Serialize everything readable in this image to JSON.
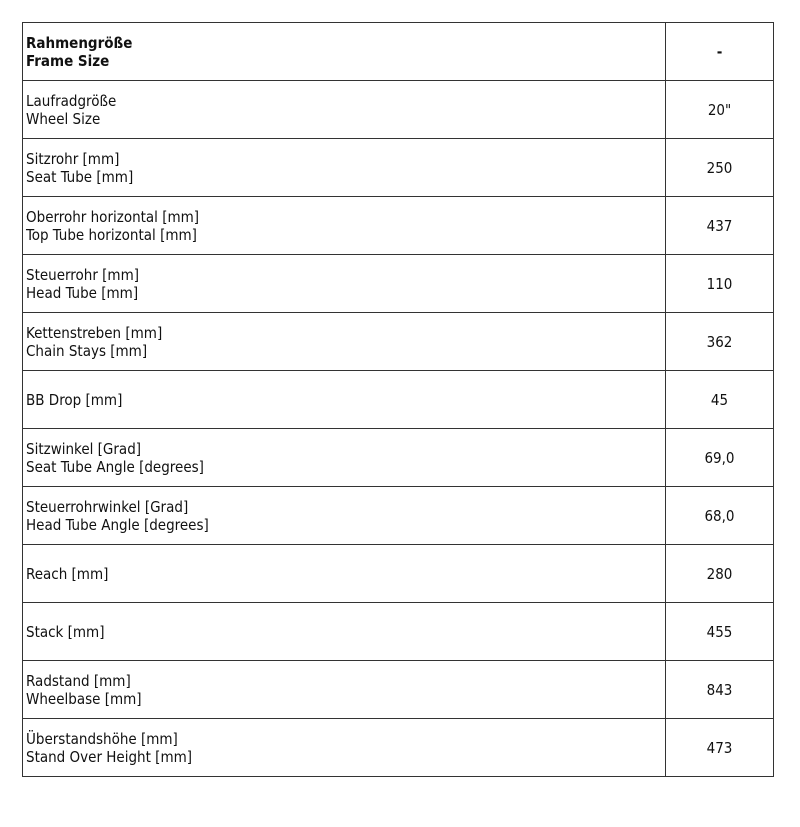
{
  "header": {
    "label_de": "Rahmengröße",
    "label_en": "Frame Size",
    "value": "-"
  },
  "rows": [
    {
      "label_de": "Laufradgröße",
      "label_en": "Wheel Size",
      "value": "20\""
    },
    {
      "label_de": "Sitzrohr [mm]",
      "label_en": "Seat Tube [mm]",
      "value": "250"
    },
    {
      "label_de": "Oberrohr horizontal [mm]",
      "label_en": "Top Tube horizontal [mm]",
      "value": "437"
    },
    {
      "label_de": "Steuerrohr [mm]",
      "label_en": "Head Tube [mm]",
      "value": "110"
    },
    {
      "label_de": "Kettenstreben [mm]",
      "label_en": "Chain Stays [mm]",
      "value": "362"
    },
    {
      "label_de": "BB Drop [mm]",
      "label_en": "",
      "value": "45"
    },
    {
      "label_de": "Sitzwinkel [Grad]",
      "label_en": "Seat Tube Angle [degrees]",
      "value": "69,0"
    },
    {
      "label_de": "Steuerrohrwinkel [Grad]",
      "label_en": "Head Tube Angle [degrees]",
      "value": "68,0"
    },
    {
      "label_de": "Reach [mm]",
      "label_en": "",
      "value": "280"
    },
    {
      "label_de": "Stack [mm]",
      "label_en": "",
      "value": "455"
    },
    {
      "label_de": "Radstand [mm]",
      "label_en": "Wheelbase [mm]",
      "value": "843"
    },
    {
      "label_de": "Überstandshöhe [mm]",
      "label_en": "Stand Over Height [mm]",
      "value": "473"
    }
  ]
}
